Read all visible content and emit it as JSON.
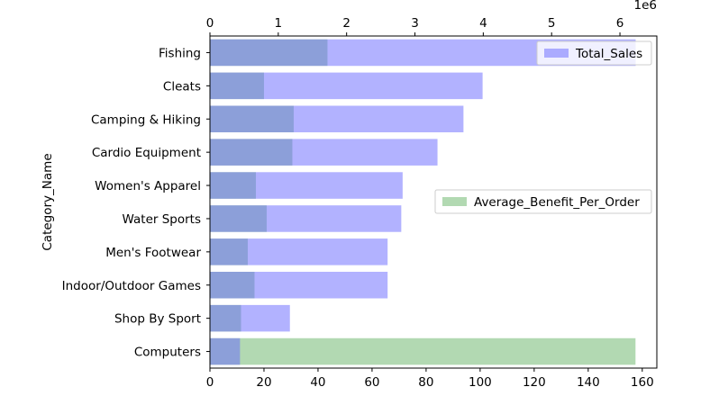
{
  "chart_data": {
    "type": "bar",
    "orientation": "horizontal",
    "ylabel": "Category_Name",
    "categories": [
      "Fishing",
      "Cleats",
      "Camping & Hiking",
      "Cardio Equipment",
      "Women's Apparel",
      "Water Sports",
      "Men's Footwear",
      "Indoor/Outdoor Games",
      "Shop By Sport",
      "Computers"
    ],
    "series": [
      {
        "name": "Total_Sales",
        "axis": "top",
        "color": "#6666ff",
        "opacity": 0.5,
        "values": [
          6230000,
          3990000,
          3710000,
          3330000,
          2820000,
          2800000,
          2600000,
          2600000,
          1170000,
          440000
        ]
      },
      {
        "name": "Average_Benefit_Per_Order",
        "axis": "bottom",
        "color": "#66b366",
        "opacity": 0.5,
        "values": [
          43.5,
          20,
          31,
          30.5,
          17,
          21,
          14,
          16.5,
          11.5,
          157.5
        ]
      }
    ],
    "top_axis": {
      "ticks": [
        0,
        1,
        2,
        3,
        4,
        5,
        6
      ],
      "tick_labels": [
        "0",
        "1",
        "2",
        "3",
        "4",
        "5",
        "6"
      ],
      "max": 6540000,
      "offset_text": "1e6"
    },
    "bottom_axis": {
      "ticks": [
        0,
        20,
        40,
        60,
        80,
        100,
        120,
        140,
        160
      ],
      "tick_labels": [
        "0",
        "20",
        "40",
        "60",
        "80",
        "100",
        "120",
        "140",
        "160"
      ],
      "max": 165.4
    },
    "legends": [
      {
        "label": "Total_Sales",
        "placement": "upper-right"
      },
      {
        "label": "Average_Benefit_Per_Order",
        "placement": "center-right"
      }
    ]
  }
}
